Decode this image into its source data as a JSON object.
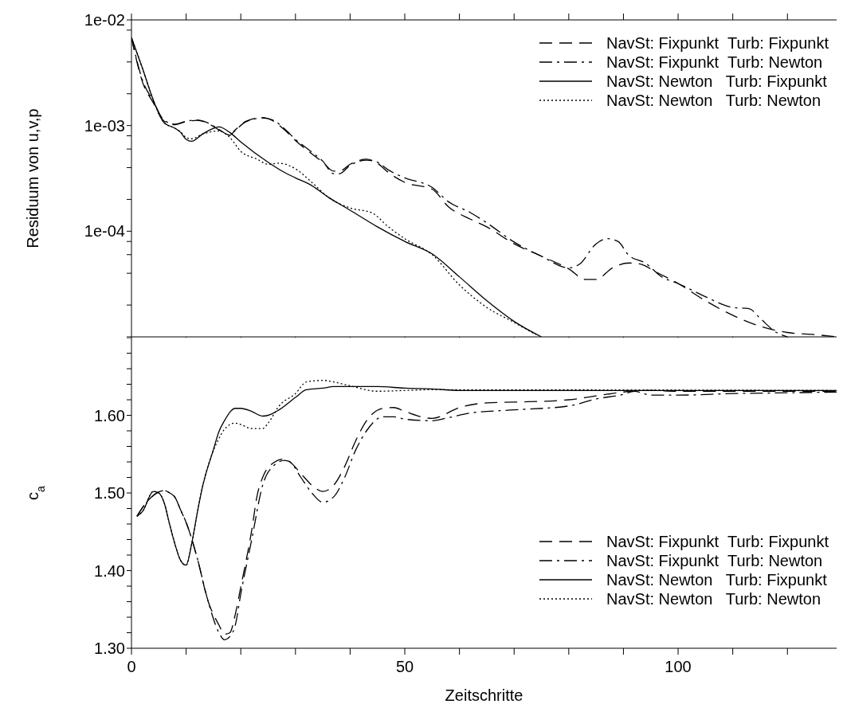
{
  "chart_data": [
    {
      "type": "line",
      "ylabel": "Residuum von u,v,p",
      "log": "y",
      "grid": false,
      "legend": "top right",
      "tick_labels": "y",
      "xlim": [
        0,
        129
      ],
      "xticks": [
        {
          "value": 0,
          "label": null
        },
        {
          "value": 10,
          "label": null
        },
        {
          "value": 20,
          "label": null
        },
        {
          "value": 30,
          "label": null
        },
        {
          "value": 40,
          "label": null
        },
        {
          "value": 50,
          "label": null
        },
        {
          "value": 60,
          "label": null
        },
        {
          "value": 70,
          "label": null
        },
        {
          "value": 80,
          "label": null
        },
        {
          "value": 90,
          "label": null
        },
        {
          "value": 100,
          "label": null
        },
        {
          "value": 110,
          "label": null
        },
        {
          "value": 120,
          "label": null
        }
      ],
      "ylim": [
        1e-05,
        0.01
      ],
      "yticks": [
        {
          "value": 1e-05,
          "label": null
        },
        {
          "value": 2e-05,
          "label": null
        },
        {
          "value": 4e-05,
          "label": null
        },
        {
          "value": 6e-05,
          "label": null
        },
        {
          "value": 8e-05,
          "label": null
        },
        {
          "value": 0.0001,
          "label": "1e-04"
        },
        {
          "value": 0.0002,
          "label": null
        },
        {
          "value": 0.0004,
          "label": null
        },
        {
          "value": 0.0006,
          "label": null
        },
        {
          "value": 0.0008,
          "label": null
        },
        {
          "value": 0.001,
          "label": "1e-03"
        },
        {
          "value": 0.002,
          "label": null
        },
        {
          "value": 0.004,
          "label": null
        },
        {
          "value": 0.008,
          "label": null
        },
        {
          "value": 0.01,
          "label": "1e-02"
        }
      ],
      "series": [
        {
          "name": "NavSt: Fixpunkt  Turb: Fixpunkt",
          "color": "#000000",
          "line_style": "dashed",
          "x": [
            0,
            2,
            4,
            6,
            8,
            10,
            12,
            14,
            16,
            18,
            19,
            21,
            24,
            26,
            28,
            30,
            33,
            35,
            37,
            38,
            40,
            43,
            45,
            47,
            50,
            55,
            58,
            62,
            65,
            70,
            75,
            80,
            83,
            85,
            88,
            91,
            93,
            96,
            100,
            105,
            110,
            115,
            120,
            125,
            129
          ],
          "values": [
            0.0068,
            0.0026,
            0.00164,
            0.0011,
            0.00102,
            0.00109,
            0.00112,
            0.00105,
            0.00091,
            0.00081,
            0.00091,
            0.0011,
            0.00119,
            0.0011,
            0.00091,
            0.00072,
            0.00054,
            0.00045,
            0.00037,
            0.00037,
            0.00043,
            0.00048,
            0.00044,
            0.00036,
            0.00029,
            0.00025,
            0.00017,
            0.00013,
            0.00011,
            7.6e-05,
            5.8e-05,
            4.4e-05,
            3.5e-05,
            3.5e-05,
            4.5e-05,
            5e-05,
            4.9e-05,
            4.1e-05,
            3.2e-05,
            2.2e-05,
            1.6e-05,
            1.26e-05,
            1.1e-05,
            1.05e-05,
            1e-05
          ]
        },
        {
          "name": "NavSt: Fixpunkt  Turb: Newton",
          "color": "#000000",
          "line_style": "dashdot",
          "x": [
            0,
            2,
            4,
            6,
            8,
            10,
            12,
            14,
            16,
            18,
            19,
            21,
            24,
            26,
            28,
            30,
            33,
            35,
            37,
            38,
            40,
            43,
            45,
            47,
            50,
            55,
            58,
            62,
            65,
            70,
            75,
            80,
            82,
            85,
            87,
            89,
            91,
            94,
            97,
            100,
            105,
            110,
            113,
            115,
            118,
            120
          ],
          "values": [
            0.0068,
            0.0027,
            0.0017,
            0.00112,
            0.00103,
            0.0011,
            0.00113,
            0.00106,
            0.00092,
            0.00081,
            0.0009,
            0.00109,
            0.00118,
            0.00112,
            0.00093,
            0.00074,
            0.00056,
            0.00046,
            0.00035,
            0.00035,
            0.00042,
            0.00047,
            0.00045,
            0.00038,
            0.00032,
            0.00026,
            0.00019,
            0.00015,
            0.00012,
            7.9e-05,
            5.8e-05,
            4.5e-05,
            4.9e-05,
            7.6e-05,
            8.5e-05,
            8e-05,
            5.9e-05,
            5e-05,
            3.7e-05,
            3.2e-05,
            2.4e-05,
            1.9e-05,
            1.85e-05,
            1.5e-05,
            1.1e-05,
            1e-05
          ]
        },
        {
          "name": "NavSt: Newton   Turb: Fixpunkt",
          "color": "#000000",
          "line_style": "solid",
          "x": [
            0,
            2,
            4,
            6,
            8,
            9,
            10,
            11,
            13,
            15,
            16,
            18,
            20,
            25,
            28,
            30,
            33,
            36,
            40,
            45,
            50,
            55,
            60,
            65,
            70,
            75
          ],
          "values": [
            0.0068,
            0.0035,
            0.00174,
            0.00106,
            0.00094,
            0.00086,
            0.00074,
            0.00071,
            0.00083,
            0.00094,
            0.00097,
            0.00086,
            0.0007,
            0.00045,
            0.00036,
            0.00032,
            0.00027,
            0.00021,
            0.000158,
            0.00011,
            8e-05,
            6.1e-05,
            3.7e-05,
            2.2e-05,
            1.4e-05,
            1e-05
          ]
        },
        {
          "name": "NavSt: Newton   Turb: Newton",
          "color": "#000000",
          "line_style": "dotted",
          "x": [
            0,
            2,
            4,
            6,
            8,
            9,
            10,
            11,
            13,
            16,
            18,
            20,
            23,
            25,
            27,
            30,
            33,
            36,
            40,
            44,
            47,
            50,
            55,
            60,
            62,
            65,
            70,
            74
          ],
          "values": [
            0.0068,
            0.0035,
            0.00174,
            0.00106,
            0.00094,
            0.00087,
            0.00077,
            0.00075,
            0.00083,
            0.00089,
            0.00077,
            0.00057,
            0.00048,
            0.00043,
            0.00044,
            0.00039,
            0.00029,
            0.00021,
            0.000166,
            0.000149,
            0.00011,
            8.5e-05,
            6e-05,
            3.1e-05,
            2.5e-05,
            1.9e-05,
            1.37e-05,
            1.05e-05
          ]
        }
      ]
    },
    {
      "type": "line",
      "xlabel": "Zeitschritte",
      "ylabel": "c$_{a}$",
      "grid": false,
      "legend": "bottom right",
      "xlim": [
        0,
        129
      ],
      "xticks": [
        0,
        {
          "value": 10,
          "label": null
        },
        {
          "value": 20,
          "label": null
        },
        {
          "value": 30,
          "label": null
        },
        {
          "value": 40,
          "label": null
        },
        50,
        {
          "value": 60,
          "label": null
        },
        {
          "value": 70,
          "label": null
        },
        {
          "value": 80,
          "label": null
        },
        {
          "value": 90,
          "label": null
        },
        100,
        {
          "value": 110,
          "label": null
        },
        {
          "value": 120,
          "label": null
        }
      ],
      "ylim": [
        1.3,
        1.7
      ],
      "yticks": [
        {
          "value": 1.3,
          "label": "1.30"
        },
        {
          "value": 1.32,
          "label": null
        },
        {
          "value": 1.34,
          "label": null
        },
        {
          "value": 1.36,
          "label": null
        },
        {
          "value": 1.38,
          "label": null
        },
        {
          "value": 1.4,
          "label": "1.40"
        },
        {
          "value": 1.42,
          "label": null
        },
        {
          "value": 1.44,
          "label": null
        },
        {
          "value": 1.46,
          "label": null
        },
        {
          "value": 1.48,
          "label": null
        },
        {
          "value": 1.5,
          "label": "1.50"
        },
        {
          "value": 1.52,
          "label": null
        },
        {
          "value": 1.54,
          "label": null
        },
        {
          "value": 1.56,
          "label": null
        },
        {
          "value": 1.58,
          "label": null
        },
        {
          "value": 1.6,
          "label": "1.60"
        },
        {
          "value": 1.62,
          "label": null
        },
        {
          "value": 1.64,
          "label": null
        },
        {
          "value": 1.66,
          "label": null
        },
        {
          "value": 1.68,
          "label": null
        },
        {
          "value": 1.7,
          "label": null
        }
      ],
      "series": [
        {
          "name": "NavSt: Fixpunkt  Turb: Fixpunkt",
          "color": "#000000",
          "line_style": "dashed",
          "x": [
            1,
            3,
            6,
            7,
            8,
            9,
            10,
            12,
            14,
            16,
            17,
            18,
            19,
            20,
            22,
            23,
            24,
            26,
            28,
            29,
            31,
            33,
            35,
            37,
            39,
            41,
            43,
            46,
            48,
            50,
            55,
            60,
            65,
            70,
            80,
            85,
            90,
            95,
            100,
            110,
            120,
            129
          ],
          "values": [
            1.47,
            1.49,
            1.503,
            1.5,
            1.494,
            1.478,
            1.462,
            1.417,
            1.361,
            1.33,
            1.318,
            1.32,
            1.344,
            1.379,
            1.452,
            1.497,
            1.52,
            1.539,
            1.544,
            1.54,
            1.525,
            1.51,
            1.502,
            1.51,
            1.534,
            1.567,
            1.593,
            1.609,
            1.61,
            1.605,
            1.596,
            1.61,
            1.616,
            1.617,
            1.62,
            1.625,
            1.63,
            1.632,
            1.631,
            1.631,
            1.631,
            1.631
          ]
        },
        {
          "name": "NavSt: Fixpunkt  Turb: Newton",
          "color": "#000000",
          "line_style": "dashdot",
          "x": [
            1,
            3,
            6,
            7,
            8,
            9,
            10,
            12,
            14,
            16,
            17,
            18,
            19,
            20,
            22,
            24,
            26,
            28,
            29,
            31,
            33,
            35,
            37,
            39,
            41,
            43,
            46,
            48,
            50,
            55,
            58,
            62,
            70,
            80,
            85,
            90,
            92,
            95,
            100,
            110,
            120,
            129
          ],
          "values": [
            1.47,
            1.49,
            1.503,
            1.5,
            1.494,
            1.478,
            1.462,
            1.417,
            1.361,
            1.32,
            1.311,
            1.315,
            1.33,
            1.37,
            1.44,
            1.51,
            1.535,
            1.542,
            1.54,
            1.52,
            1.5,
            1.488,
            1.495,
            1.52,
            1.555,
            1.58,
            1.598,
            1.598,
            1.595,
            1.593,
            1.597,
            1.603,
            1.607,
            1.612,
            1.621,
            1.627,
            1.631,
            1.626,
            1.626,
            1.628,
            1.629,
            1.63
          ]
        },
        {
          "name": "NavSt: Newton   Turb: Fixpunkt",
          "color": "#000000",
          "line_style": "solid",
          "x": [
            1,
            2,
            4,
            5,
            6,
            7,
            8,
            9,
            10,
            11,
            12,
            13,
            15,
            16,
            17,
            19,
            20,
            22,
            24,
            25,
            27,
            30,
            32,
            35,
            37,
            45,
            50,
            55,
            60,
            80,
            100,
            129
          ],
          "values": [
            1.47,
            1.476,
            1.502,
            1.5,
            1.487,
            1.459,
            1.433,
            1.413,
            1.407,
            1.434,
            1.473,
            1.508,
            1.556,
            1.579,
            1.593,
            1.609,
            1.609,
            1.605,
            1.599,
            1.6,
            1.607,
            1.623,
            1.633,
            1.635,
            1.637,
            1.637,
            1.635,
            1.634,
            1.632,
            1.632,
            1.632,
            1.632
          ]
        },
        {
          "name": "NavSt: Newton   Turb: Newton",
          "color": "#000000",
          "line_style": "dotted",
          "x": [
            1,
            2,
            4,
            5,
            6,
            7,
            8,
            9,
            10,
            11,
            12,
            13,
            15,
            16,
            17,
            19,
            20,
            22,
            24,
            25,
            27,
            30,
            32,
            35,
            37,
            40,
            45,
            50,
            55,
            129
          ],
          "values": [
            1.47,
            1.476,
            1.502,
            1.5,
            1.487,
            1.459,
            1.433,
            1.413,
            1.407,
            1.434,
            1.473,
            1.508,
            1.555,
            1.57,
            1.582,
            1.59,
            1.588,
            1.583,
            1.583,
            1.59,
            1.612,
            1.628,
            1.643,
            1.645,
            1.643,
            1.638,
            1.631,
            1.632,
            1.633,
            1.632
          ]
        }
      ]
    }
  ]
}
